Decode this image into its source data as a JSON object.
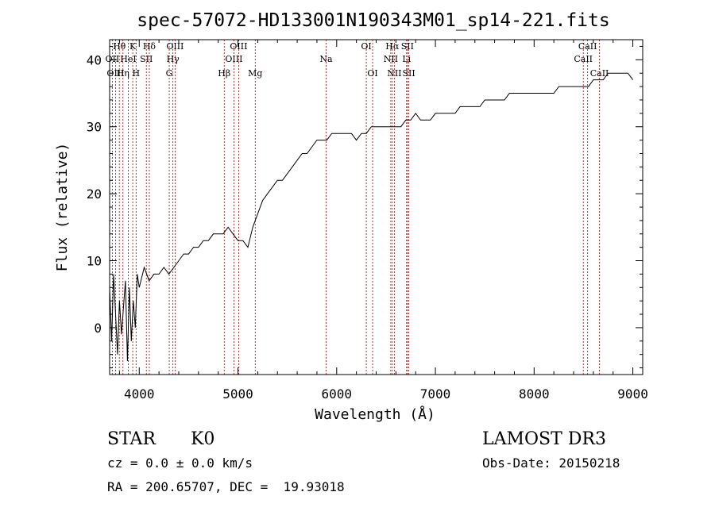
{
  "chart_data": {
    "type": "line",
    "title": "spec-57072-HD133001N190343M01_sp14-221.fits",
    "xlabel": "Wavelength (Å)",
    "ylabel": "Flux (relative)",
    "xlim": [
      3700,
      9100
    ],
    "ylim": [
      -7,
      43
    ],
    "xticks": [
      4000,
      5000,
      6000,
      7000,
      8000,
      9000
    ],
    "yticks": [
      0,
      10,
      20,
      30,
      40
    ],
    "grid": false,
    "line_color": "#000000",
    "marker_color": "#aa0000",
    "series": [
      {
        "x": [
          3700,
          3720,
          3740,
          3760,
          3780,
          3800,
          3820,
          3840,
          3860,
          3880,
          3900,
          3920,
          3940,
          3960,
          3980,
          4000,
          4050,
          4100,
          4150,
          4200,
          4250,
          4300,
          4350,
          4400,
          4450,
          4500,
          4550,
          4600,
          4650,
          4700,
          4750,
          4800,
          4850,
          4900,
          4950,
          5000,
          5050,
          5100,
          5150,
          5200,
          5250,
          5300,
          5350,
          5400,
          5450,
          5500,
          5550,
          5600,
          5650,
          5700,
          5750,
          5800,
          5850,
          5900,
          5950,
          6000,
          6050,
          6100,
          6150,
          6200,
          6250,
          6300,
          6350,
          6400,
          6450,
          6500,
          6550,
          6600,
          6650,
          6700,
          6750,
          6800,
          6850,
          6900,
          6950,
          7000,
          7050,
          7100,
          7150,
          7200,
          7250,
          7300,
          7350,
          7400,
          7450,
          7500,
          7550,
          7600,
          7650,
          7700,
          7750,
          7800,
          7850,
          7900,
          7950,
          8000,
          8050,
          8100,
          8150,
          8200,
          8250,
          8300,
          8350,
          8400,
          8450,
          8500,
          8550,
          8600,
          8650,
          8700,
          8750,
          8800,
          8850,
          8900,
          8950,
          9000
        ],
        "y": [
          6,
          -2,
          8,
          2,
          -4,
          4,
          -1,
          3,
          7,
          -5,
          6,
          -2,
          4,
          0,
          8,
          6,
          9,
          7,
          8,
          8,
          9,
          8,
          9,
          10,
          11,
          11,
          12,
          12,
          13,
          13,
          14,
          14,
          14,
          15,
          14,
          13,
          13,
          12,
          15,
          17,
          19,
          20,
          21,
          22,
          22,
          23,
          24,
          25,
          26,
          26,
          27,
          28,
          28,
          28,
          29,
          29,
          29,
          29,
          29,
          28,
          29,
          29,
          30,
          30,
          30,
          30,
          30,
          30,
          30,
          31,
          31,
          32,
          31,
          31,
          31,
          32,
          32,
          32,
          32,
          32,
          33,
          33,
          33,
          33,
          33,
          34,
          34,
          34,
          34,
          34,
          35,
          35,
          35,
          35,
          35,
          35,
          35,
          35,
          35,
          35,
          36,
          36,
          36,
          36,
          36,
          36,
          36,
          37,
          37,
          37,
          38,
          38,
          38,
          38,
          38,
          37
        ]
      }
    ],
    "lines": [
      {
        "name": "Hθ",
        "x": 3798,
        "row": 0
      },
      {
        "name": "OII",
        "x": 3727,
        "row": 1
      },
      {
        "name": "OIII",
        "x": 3760,
        "row": 2
      },
      {
        "name": "K",
        "x": 3934,
        "row": 0
      },
      {
        "name": "HeI",
        "x": 3889,
        "row": 1
      },
      {
        "name": "Hη",
        "x": 3835,
        "row": 2
      },
      {
        "name": "Hδ",
        "x": 4102,
        "row": 0
      },
      {
        "name": "SII",
        "x": 4072,
        "row": 1
      },
      {
        "name": "H",
        "x": 3968,
        "row": 2
      },
      {
        "name": "OIII",
        "x": 4363,
        "row": 0
      },
      {
        "name": "Hγ",
        "x": 4341,
        "row": 1
      },
      {
        "name": "G",
        "x": 4304,
        "row": 2
      },
      {
        "name": "OIII",
        "x": 5007,
        "row": 0
      },
      {
        "name": "OIII",
        "x": 4959,
        "row": 1
      },
      {
        "name": "Hβ",
        "x": 4861,
        "row": 2
      },
      {
        "name": "Mg",
        "x": 5175,
        "row": 2
      },
      {
        "name": "Na",
        "x": 5893,
        "row": 1
      },
      {
        "name": "OI",
        "x": 6300,
        "row": 0
      },
      {
        "name": "OI",
        "x": 6364,
        "row": 2
      },
      {
        "name": "Hα",
        "x": 6563,
        "row": 0
      },
      {
        "name": "NII",
        "x": 6548,
        "row": 1
      },
      {
        "name": "NII",
        "x": 6584,
        "row": 2
      },
      {
        "name": "SII",
        "x": 6717,
        "row": 0
      },
      {
        "name": "Li",
        "x": 6708,
        "row": 1
      },
      {
        "name": "SII",
        "x": 6731,
        "row": 2
      },
      {
        "name": "CaII",
        "x": 8542,
        "row": 0
      },
      {
        "name": "CaII",
        "x": 8498,
        "row": 1
      },
      {
        "name": "CaII",
        "x": 8662,
        "row": 2
      }
    ]
  },
  "info": {
    "object_type": "STAR",
    "subclass": "K0",
    "survey": "LAMOST DR3",
    "cz": "cz = 0.0 ± 0.0 km/s",
    "obs_date": "Obs-Date: 20150218",
    "coords": "RA = 200.65707, DEC =  19.93018"
  }
}
